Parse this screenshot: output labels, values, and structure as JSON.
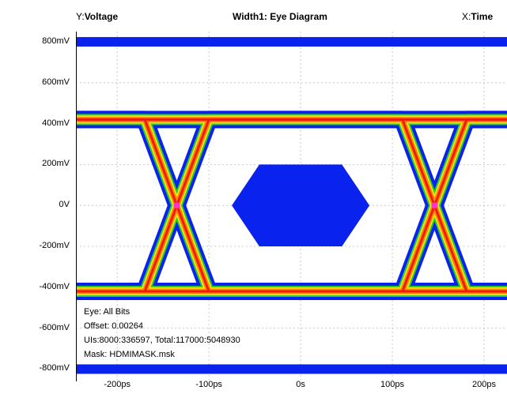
{
  "header": {
    "y_prefix": "Y:",
    "y_label": "Voltage",
    "title": "Width1: Eye Diagram",
    "x_prefix": "X:",
    "x_label": "Time"
  },
  "info": {
    "eye": "Eye: All Bits",
    "offset": "Offset: 0.00264",
    "uis": "UIs:8000:336597, Total:117000:5048930",
    "mask": "Mask: HDMIMASK.msk"
  },
  "colors": {
    "mask_fill": "#0a22ee",
    "trace_outer": "#0a22ee",
    "trace_green": "#2ccc2c",
    "trace_yellow": "#f2ef1c",
    "trace_orange": "#ff8a00",
    "trace_red": "#ee1c10",
    "crossing": "#ff33cc",
    "grid": "#c8c8c8"
  },
  "chart_data": {
    "type": "eye-diagram",
    "title": "Width1: Eye Diagram",
    "xlabel": "Time",
    "ylabel": "Voltage",
    "x_unit": "ps",
    "y_unit": "mV",
    "x_ticks": [
      {
        "value": -200,
        "label": "-200ps"
      },
      {
        "value": -100,
        "label": "-100ps"
      },
      {
        "value": 0,
        "label": "0s"
      },
      {
        "value": 100,
        "label": "100ps"
      },
      {
        "value": 200,
        "label": "200ps"
      }
    ],
    "y_ticks": [
      {
        "value": 800,
        "label": "800mV"
      },
      {
        "value": 600,
        "label": "600mV"
      },
      {
        "value": 400,
        "label": "400mV"
      },
      {
        "value": 200,
        "label": "200mV"
      },
      {
        "value": 0,
        "label": "0V"
      },
      {
        "value": -200,
        "label": "-200mV"
      },
      {
        "value": -400,
        "label": "-400mV"
      },
      {
        "value": -600,
        "label": "-600mV"
      },
      {
        "value": -800,
        "label": "-800mV"
      }
    ],
    "xlim": [
      -245,
      225
    ],
    "ylim": [
      -860,
      850
    ],
    "grid": true,
    "high_level_mV": 420,
    "low_level_mV": -420,
    "crossings": [
      {
        "x": -135,
        "y": 0
      },
      {
        "x": 146,
        "y": 0
      }
    ],
    "mask_polygon": [
      {
        "x": -45,
        "y": 200
      },
      {
        "x": 45,
        "y": 200
      },
      {
        "x": 75,
        "y": 0
      },
      {
        "x": 45,
        "y": -200
      },
      {
        "x": -45,
        "y": -200
      },
      {
        "x": -75,
        "y": 0
      }
    ],
    "top_mask_y": 800,
    "bottom_mask_y": -800
  }
}
